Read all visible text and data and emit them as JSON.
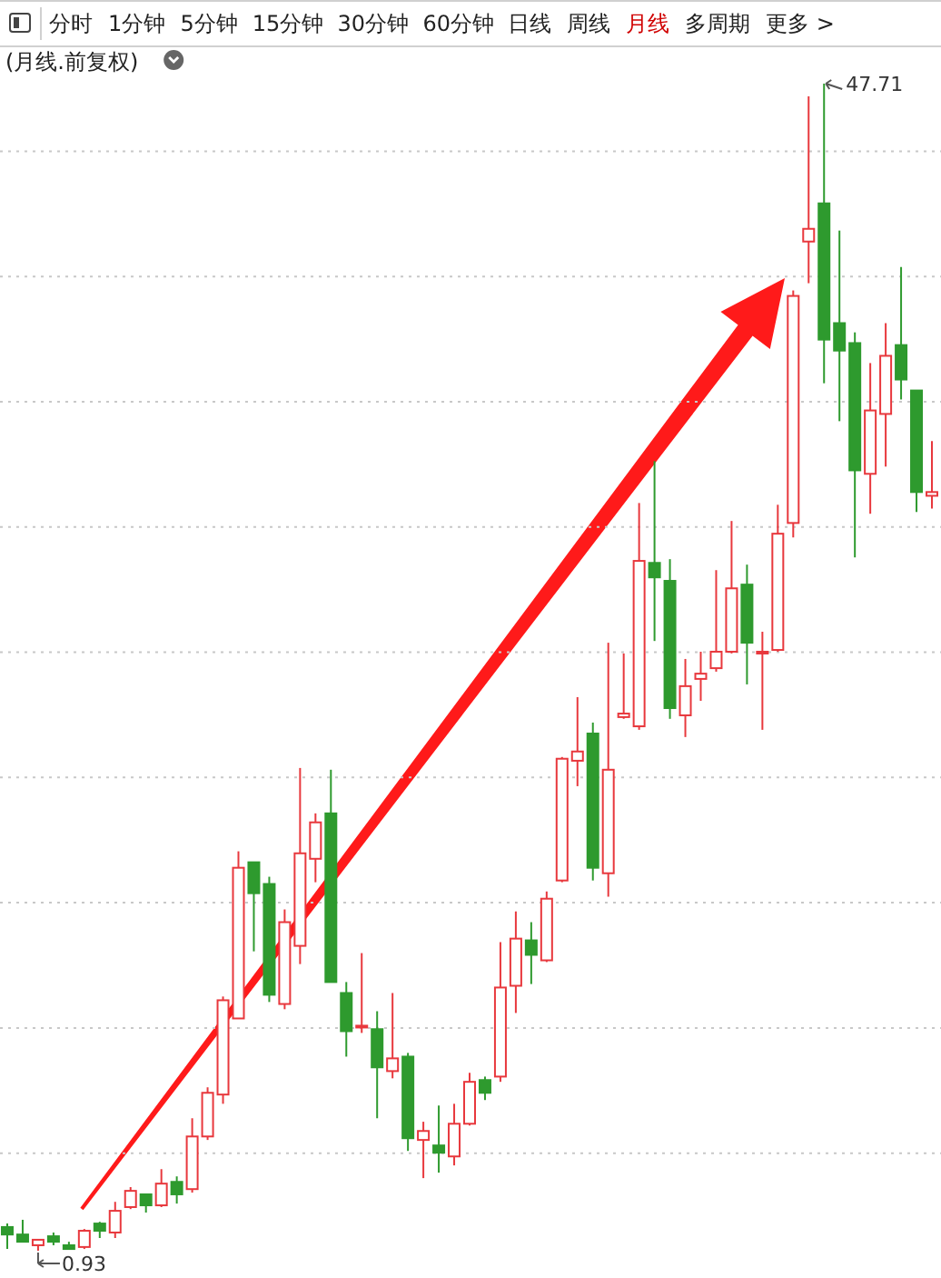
{
  "chart_data": {
    "type": "candlestick",
    "title": "(月线.前复权)",
    "categories": [
      null,
      null,
      null,
      null,
      null,
      null,
      null,
      null,
      null,
      null,
      null,
      null,
      null,
      null,
      null,
      null,
      null,
      null,
      null,
      null,
      null,
      null,
      null,
      null,
      null,
      null,
      null,
      null,
      null,
      null,
      null,
      null,
      null,
      null,
      null,
      null,
      null,
      null,
      null,
      null,
      null,
      null,
      null,
      null,
      null,
      null,
      null,
      null,
      null,
      null,
      null,
      null,
      null,
      null,
      null,
      null,
      null,
      null,
      null,
      null,
      null
    ],
    "ohlc": [
      [
        1.88,
        2.02,
        1.0,
        1.58
      ],
      [
        1.58,
        2.17,
        1.29,
        1.29
      ],
      [
        1.15,
        1.37,
        0.93,
        1.37
      ],
      [
        1.51,
        1.66,
        1.15,
        1.29
      ],
      [
        1.15,
        1.29,
        1.0,
        1.0
      ],
      [
        1.08,
        1.8,
        1.0,
        1.73
      ],
      [
        2.02,
        2.09,
        1.44,
        1.73
      ],
      [
        1.66,
        2.89,
        1.44,
        2.53
      ],
      [
        2.68,
        3.48,
        2.6,
        3.33
      ],
      [
        3.19,
        3.19,
        2.46,
        2.75
      ],
      [
        2.75,
        4.2,
        2.68,
        3.62
      ],
      [
        3.69,
        3.91,
        2.82,
        3.19
      ],
      [
        3.4,
        6.24,
        3.26,
        5.51
      ],
      [
        5.51,
        7.48,
        5.37,
        7.26
      ],
      [
        7.19,
        11.12,
        6.82,
        10.97
      ],
      [
        10.24,
        16.94,
        10.24,
        16.28
      ],
      [
        16.5,
        16.5,
        12.93,
        15.26
      ],
      [
        15.63,
        15.92,
        10.9,
        11.19
      ],
      [
        10.82,
        14.61,
        10.61,
        14.1
      ],
      [
        13.15,
        20.28,
        12.42,
        16.86
      ],
      [
        16.64,
        18.46,
        15.7,
        18.1
      ],
      [
        18.46,
        20.21,
        11.7,
        11.7
      ],
      [
        11.26,
        11.7,
        8.71,
        9.73
      ],
      [
        9.91,
        12.86,
        9.66,
        9.95
      ],
      [
        9.81,
        10.53,
        6.24,
        8.28
      ],
      [
        8.13,
        11.26,
        7.84,
        8.64
      ],
      [
        8.71,
        8.86,
        4.93,
        5.44
      ],
      [
        5.37,
        6.1,
        3.84,
        5.73
      ],
      [
        5.15,
        6.75,
        4.06,
        4.86
      ],
      [
        4.71,
        6.82,
        4.35,
        6.02
      ],
      [
        6.02,
        8.06,
        5.95,
        7.7
      ],
      [
        7.77,
        7.91,
        6.97,
        7.26
      ],
      [
        7.91,
        13.3,
        7.7,
        11.48
      ],
      [
        11.55,
        14.53,
        10.46,
        13.44
      ],
      [
        13.37,
        14.1,
        11.62,
        12.79
      ],
      [
        12.57,
        15.33,
        12.5,
        15.04
      ],
      [
        15.77,
        20.72,
        15.7,
        20.65
      ],
      [
        20.57,
        23.12,
        19.55,
        20.94
      ],
      [
        21.66,
        22.1,
        15.77,
        16.28
      ],
      [
        16.06,
        25.3,
        15.12,
        20.21
      ],
      [
        22.32,
        24.87,
        22.25,
        22.46
      ],
      [
        21.95,
        30.9,
        21.81,
        28.58
      ],
      [
        28.5,
        32.58,
        25.37,
        27.92
      ],
      [
        27.78,
        28.65,
        22.25,
        22.68
      ],
      [
        22.39,
        24.65,
        21.52,
        23.56
      ],
      [
        23.85,
        24.94,
        22.97,
        24.06
      ],
      [
        24.28,
        28.21,
        24.14,
        24.94
      ],
      [
        24.94,
        30.18,
        24.87,
        27.48
      ],
      [
        27.63,
        28.43,
        23.63,
        25.3
      ],
      [
        24.9,
        25.74,
        21.81,
        24.94
      ],
      [
        25.01,
        30.83,
        24.94,
        29.67
      ],
      [
        30.1,
        39.42,
        29.52,
        39.2
      ],
      [
        41.38,
        47.2,
        39.71,
        41.89
      ],
      [
        42.91,
        47.71,
        35.7,
        37.45
      ],
      [
        38.11,
        41.82,
        34.18,
        37.01
      ],
      [
        37.31,
        37.74,
        28.72,
        32.21
      ],
      [
        32.07,
        36.51,
        30.47,
        34.61
      ],
      [
        34.47,
        38.11,
        32.36,
        36.8
      ],
      [
        37.23,
        40.36,
        35.05,
        35.85
      ],
      [
        35.41,
        35.41,
        30.54,
        31.34
      ],
      [
        31.19,
        33.38,
        30.68,
        31.34
      ]
    ],
    "colors": [
      "#2e9a2e",
      "#2e9a2e",
      "#e8383d",
      "#2e9a2e",
      "#2e9a2e",
      "#e8383d",
      "#2e9a2e",
      "#e8383d",
      "#e8383d",
      "#2e9a2e",
      "#e8383d",
      "#2e9a2e",
      "#e8383d",
      "#e8383d",
      "#e8383d",
      "#e8383d",
      "#2e9a2e",
      "#2e9a2e",
      "#e8383d",
      "#e8383d",
      "#e8383d",
      "#2e9a2e",
      "#2e9a2e",
      "#e8383d",
      "#2e9a2e",
      "#e8383d",
      "#2e9a2e",
      "#e8383d",
      "#2e9a2e",
      "#e8383d",
      "#e8383d",
      "#2e9a2e",
      "#e8383d",
      "#e8383d",
      "#2e9a2e",
      "#e8383d",
      "#e8383d",
      "#e8383d",
      "#2e9a2e",
      "#e8383d",
      "#e8383d",
      "#e8383d",
      "#2e9a2e",
      "#2e9a2e",
      "#e8383d",
      "#e8383d",
      "#e8383d",
      "#e8383d",
      "#2e9a2e",
      "#e8383d",
      "#e8383d",
      "#e8383d",
      "#e8383d",
      "#2e9a2e",
      "#2e9a2e",
      "#2e9a2e",
      "#e8383d",
      "#e8383d",
      "#2e9a2e",
      "#2e9a2e",
      "#e8383d"
    ],
    "yticks": [
      {
        "value": 4.84,
        "label": null
      },
      {
        "value": 9.86,
        "label": null
      },
      {
        "value": 14.88,
        "label": null
      },
      {
        "value": 19.9,
        "label": null
      },
      {
        "value": 24.92,
        "label": null
      },
      {
        "value": 29.94,
        "label": null
      },
      {
        "value": 34.96,
        "label": null
      },
      {
        "value": 39.98,
        "label": null
      },
      {
        "value": 45.0,
        "label": null
      }
    ],
    "grid": "y",
    "annotations": [
      "分时",
      "1分钟",
      "5分钟",
      "15分钟",
      "30分钟",
      "60分钟",
      "日线",
      "周线",
      "月线",
      "多周期",
      "更多 >",
      "47.71",
      "0.93"
    ]
  }
}
